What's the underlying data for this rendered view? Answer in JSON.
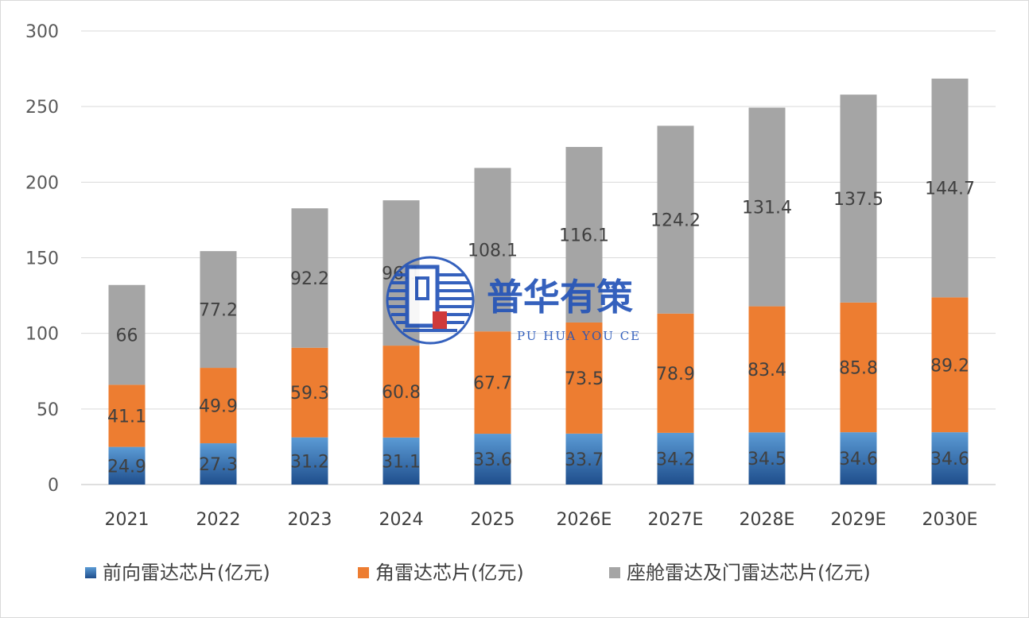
{
  "chart_data": {
    "type": "bar",
    "stacked": true,
    "categories": [
      "2021",
      "2022",
      "2023",
      "2024",
      "2025",
      "2026E",
      "2027E",
      "2028E",
      "2029E",
      "2030E"
    ],
    "series": [
      {
        "name": "前向雷达芯片(亿元)",
        "color": "#3a78c2",
        "values": [
          24.9,
          27.3,
          31.2,
          31.1,
          33.6,
          33.7,
          34.2,
          34.5,
          34.6,
          34.6
        ],
        "labels": [
          "24.9",
          "27.3",
          "31.2",
          "31.1",
          "33.6",
          "33.7",
          "34.2",
          "34.5",
          "34.6",
          "34.6"
        ]
      },
      {
        "name": "角雷达芯片(亿元)",
        "color": "#ed7d31",
        "values": [
          41.1,
          49.9,
          59.3,
          60.8,
          67.7,
          73.5,
          78.9,
          83.4,
          85.8,
          89.2
        ],
        "labels": [
          "41.1",
          "49.9",
          "59.3",
          "60.8",
          "67.7",
          "73.5",
          "78.9",
          "83.4",
          "85.8",
          "89.2"
        ]
      },
      {
        "name": "座舱雷达及门雷达芯片(亿元)",
        "color": "#a5a5a5",
        "values": [
          66,
          77.2,
          92.2,
          96.1,
          108.1,
          116.1,
          124.2,
          131.4,
          137.5,
          144.7
        ],
        "labels": [
          "66",
          "77.2",
          "92.2",
          "96.1",
          "108.1",
          "116.1",
          "124.2",
          "131.4",
          "137.5",
          "144.7"
        ]
      }
    ],
    "y_ticks": [
      "0",
      "50",
      "100",
      "150",
      "200",
      "250",
      "300"
    ],
    "ylim": [
      0,
      300
    ],
    "grid": true,
    "legend_position": "bottom"
  },
  "watermark": {
    "cn": "普华有策",
    "en": "PU HUA YOU CE",
    "color": "#2454b8"
  }
}
